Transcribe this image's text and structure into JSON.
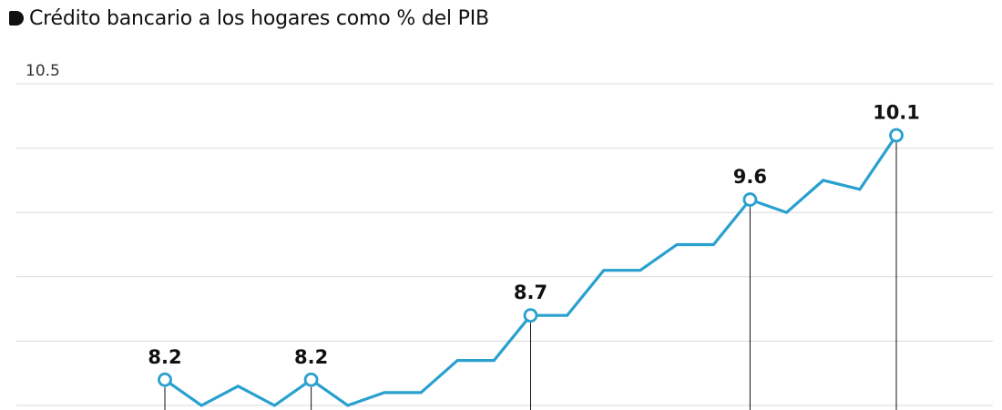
{
  "chart_data": {
    "type": "line",
    "title": "Crédito bancario a los hogares como % del PIB",
    "subtitle": "",
    "xlabel": "",
    "ylabel": "",
    "ylim": [
      8.0,
      10.5
    ],
    "yticks_labeled": [
      10.5
    ],
    "grid": true,
    "legend": "none",
    "line_color": "#2aa0cf",
    "series": [
      {
        "values": [
          8.2,
          8.0,
          8.15,
          8.0,
          8.2,
          8.0,
          8.1,
          8.1,
          8.35,
          8.35,
          8.7,
          8.7,
          9.05,
          9.05,
          9.25,
          9.25,
          9.6,
          9.5,
          9.75,
          9.68,
          10.1
        ]
      }
    ],
    "annotations": [
      {
        "index": 0,
        "label": "8.2"
      },
      {
        "index": 4,
        "label": "8.2"
      },
      {
        "index": 10,
        "label": "8.7"
      },
      {
        "index": 16,
        "label": "9.6"
      },
      {
        "index": 20,
        "label": "10.1"
      }
    ]
  }
}
